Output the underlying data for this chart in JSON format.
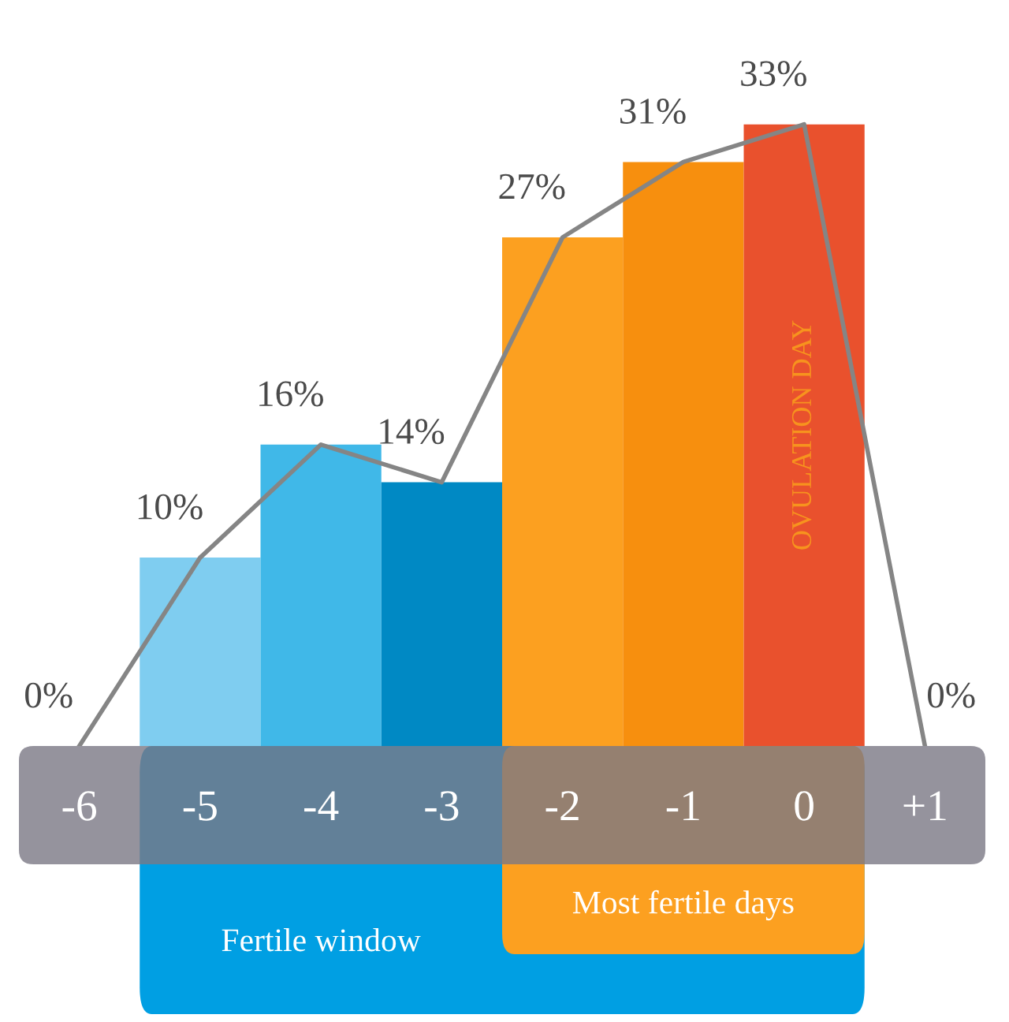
{
  "chart_data": {
    "type": "bar",
    "categories": [
      "-6",
      "-5",
      "-4",
      "-3",
      "-2",
      "-1",
      "0",
      "+1"
    ],
    "series": [
      {
        "colors": [
          "#7fcdf0",
          "#7fcdf0",
          "#40b8e8",
          "#0089c4",
          "#fca020",
          "#f78f0e",
          "#e9512d",
          "#e9512d"
        ],
        "values": [
          0,
          10,
          16,
          14,
          27,
          31,
          33,
          0
        ]
      },
      {
        "type": "line",
        "color": "#858585",
        "values": [
          0,
          10,
          16,
          14,
          27,
          31,
          33,
          0
        ],
        "value_labels": [
          "0%",
          "10%",
          "16%",
          "14%",
          "27%",
          "31%",
          "33%",
          "0%"
        ]
      }
    ],
    "annotations": [
      "OVULATION DAY",
      "Fertile window",
      "Most fertile days"
    ],
    "grid": false,
    "legend": false,
    "marker": "none",
    "line_style": "solid"
  }
}
